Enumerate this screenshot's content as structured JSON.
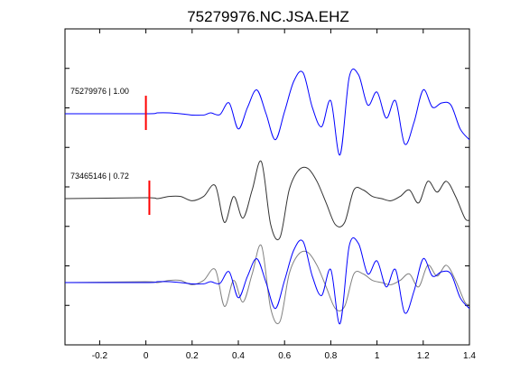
{
  "chart_data": {
    "type": "line",
    "title": "75279976.NC.JSA.EHZ",
    "xlabel": "",
    "ylabel": "",
    "xlim": [
      -0.35,
      1.4
    ],
    "xticks": [
      -0.2,
      0,
      0.2,
      0.4,
      0.6,
      0.8,
      1,
      1.2,
      1.4
    ],
    "xtick_labels": [
      "-0.2",
      "0",
      "0.2",
      "0.4",
      "0.6",
      "0.8",
      "1",
      "1.2",
      "1.4"
    ],
    "y_ticks_unlabeled": 7,
    "grid": false,
    "legend": "none",
    "colors": {
      "primary": "#0000ff",
      "secondary": "#333333",
      "overlay_secondary": "#808080",
      "pick": "#ff0000"
    },
    "traces": [
      {
        "label": "75279976 | 1.00",
        "id": "75279976",
        "correlation": 1.0,
        "color": "#0000ff",
        "pick_time": 0.0,
        "x": [
          -0.35,
          0.0,
          0.05,
          0.1,
          0.15,
          0.2,
          0.25,
          0.28,
          0.32,
          0.36,
          0.4,
          0.44,
          0.48,
          0.52,
          0.56,
          0.6,
          0.64,
          0.68,
          0.72,
          0.76,
          0.8,
          0.84,
          0.88,
          0.92,
          0.96,
          1.0,
          1.04,
          1.08,
          1.12,
          1.16,
          1.2,
          1.24,
          1.28,
          1.32,
          1.36,
          1.4
        ],
        "y": [
          0.0,
          0.0,
          0.02,
          0.02,
          0.0,
          -0.03,
          -0.03,
          0.02,
          -0.02,
          0.25,
          -0.35,
          0.15,
          0.55,
          0.0,
          -0.6,
          0.05,
          0.75,
          0.95,
          0.15,
          -0.3,
          0.3,
          -0.95,
          0.85,
          0.9,
          0.2,
          0.5,
          -0.1,
          0.3,
          -0.7,
          -0.2,
          0.55,
          0.15,
          0.25,
          0.2,
          -0.35,
          -0.6
        ]
      },
      {
        "label": "73465146 | 0.72",
        "id": "73465146",
        "correlation": 0.72,
        "color": "#333333",
        "pick_time": 0.015,
        "x": [
          -0.35,
          0.0,
          0.05,
          0.1,
          0.15,
          0.2,
          0.25,
          0.3,
          0.34,
          0.38,
          0.42,
          0.46,
          0.5,
          0.54,
          0.58,
          0.62,
          0.66,
          0.7,
          0.74,
          0.78,
          0.82,
          0.86,
          0.9,
          0.94,
          0.98,
          1.02,
          1.06,
          1.1,
          1.14,
          1.18,
          1.22,
          1.26,
          1.3,
          1.34,
          1.38,
          1.4
        ],
        "y": [
          0.0,
          0.02,
          0.0,
          0.05,
          0.05,
          -0.05,
          0.05,
          0.3,
          -0.55,
          0.05,
          -0.45,
          0.2,
          0.85,
          -0.6,
          -0.9,
          0.2,
          0.65,
          0.7,
          0.4,
          -0.1,
          -0.6,
          -0.55,
          0.2,
          0.2,
          0.05,
          0.0,
          -0.05,
          0.05,
          0.2,
          -0.1,
          0.4,
          0.15,
          0.4,
          0.05,
          -0.45,
          -0.5
        ]
      },
      {
        "label": "",
        "overlay": true,
        "series": [
          {
            "color": "#0000ff",
            "x": [
              -0.35,
              0.0,
              0.05,
              0.1,
              0.15,
              0.2,
              0.25,
              0.28,
              0.32,
              0.36,
              0.4,
              0.44,
              0.48,
              0.52,
              0.56,
              0.6,
              0.64,
              0.68,
              0.72,
              0.76,
              0.8,
              0.84,
              0.88,
              0.92,
              0.96,
              1.0,
              1.04,
              1.08,
              1.12,
              1.16,
              1.2,
              1.24,
              1.28,
              1.32,
              1.36,
              1.4
            ],
            "y": [
              0.0,
              0.0,
              0.02,
              0.02,
              0.0,
              -0.03,
              -0.03,
              0.02,
              -0.02,
              0.25,
              -0.35,
              0.15,
              0.55,
              0.0,
              -0.6,
              0.05,
              0.75,
              0.95,
              0.15,
              -0.3,
              0.3,
              -0.95,
              0.85,
              0.9,
              0.2,
              0.5,
              -0.1,
              0.3,
              -0.7,
              -0.2,
              0.55,
              0.15,
              0.25,
              0.2,
              -0.35,
              -0.6
            ]
          },
          {
            "color": "#808080",
            "x": [
              -0.35,
              0.0,
              0.05,
              0.1,
              0.15,
              0.2,
              0.25,
              0.3,
              0.34,
              0.38,
              0.42,
              0.46,
              0.5,
              0.54,
              0.58,
              0.62,
              0.66,
              0.7,
              0.74,
              0.78,
              0.82,
              0.86,
              0.9,
              0.94,
              0.98,
              1.02,
              1.06,
              1.1,
              1.14,
              1.18,
              1.22,
              1.26,
              1.3,
              1.34,
              1.38,
              1.4
            ],
            "y": [
              0.0,
              0.02,
              0.0,
              0.05,
              0.05,
              -0.05,
              0.05,
              0.3,
              -0.55,
              0.05,
              -0.45,
              0.2,
              0.85,
              -0.6,
              -0.9,
              0.2,
              0.65,
              0.7,
              0.4,
              -0.1,
              -0.6,
              -0.55,
              0.2,
              0.2,
              0.05,
              0.0,
              -0.05,
              0.05,
              0.2,
              -0.1,
              0.4,
              0.15,
              0.4,
              0.05,
              -0.45,
              -0.5
            ]
          }
        ]
      }
    ]
  }
}
